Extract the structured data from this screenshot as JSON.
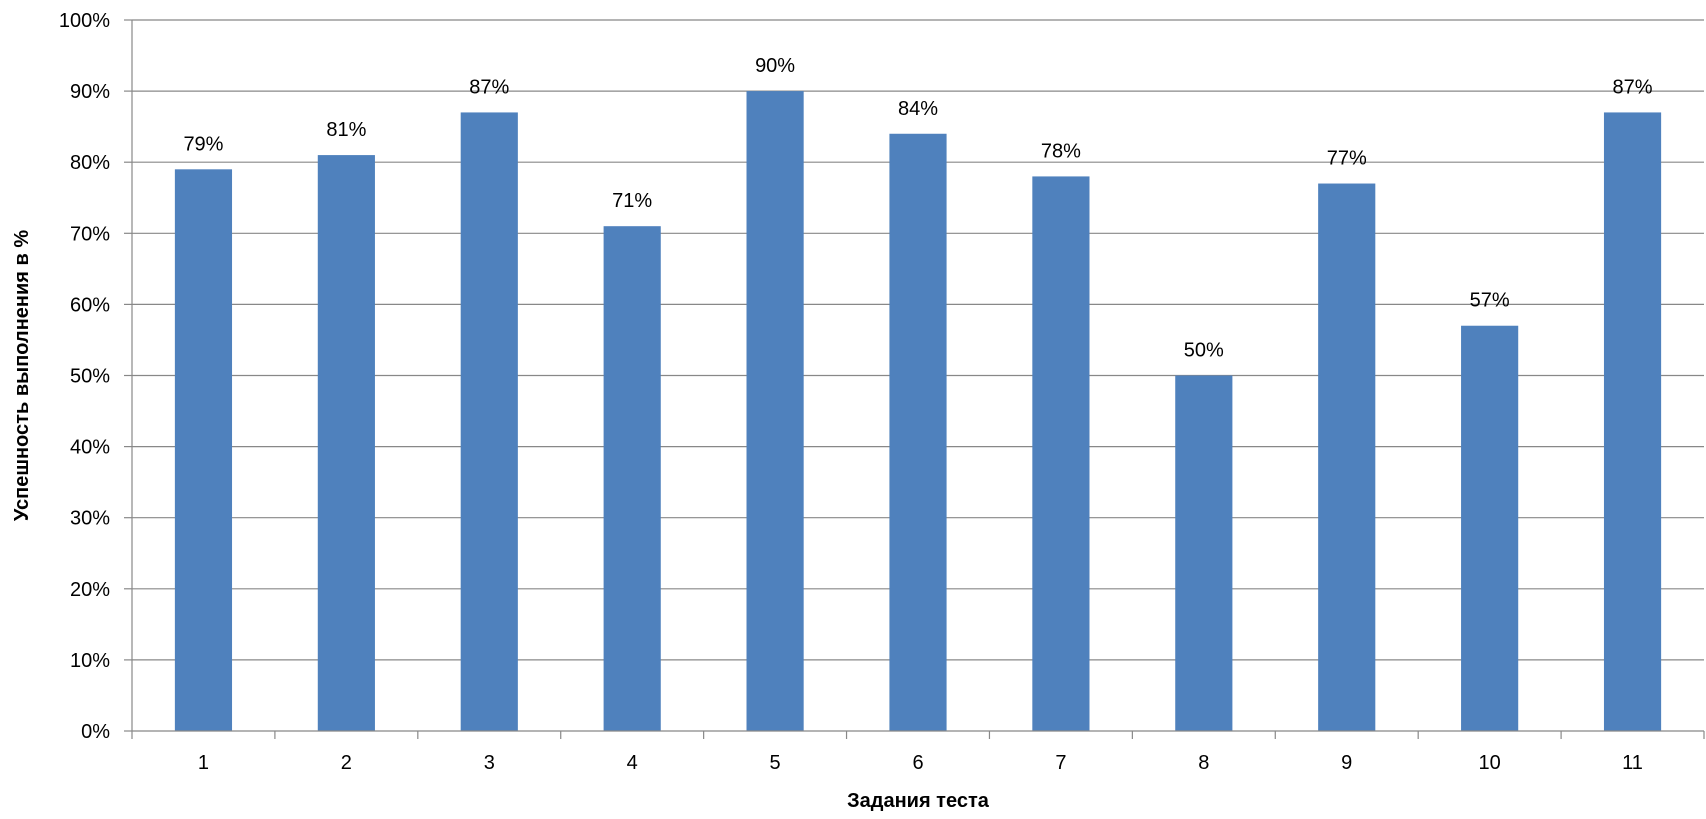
{
  "chart_data": {
    "type": "bar",
    "categories": [
      "1",
      "2",
      "3",
      "4",
      "5",
      "6",
      "7",
      "8",
      "9",
      "10",
      "11"
    ],
    "values": [
      79,
      81,
      87,
      71,
      90,
      84,
      78,
      50,
      77,
      57,
      87
    ],
    "data_labels": [
      "79%",
      "81%",
      "87%",
      "71%",
      "90%",
      "84%",
      "78%",
      "50%",
      "77%",
      "57%",
      "87%"
    ],
    "title": "",
    "xlabel": "Задания теста",
    "ylabel": "Успешность выполнения в %",
    "ylim": [
      0,
      100
    ],
    "yticks": [
      "0%",
      "10%",
      "20%",
      "30%",
      "40%",
      "50%",
      "60%",
      "70%",
      "80%",
      "90%",
      "100%"
    ],
    "grid": true,
    "legend": "none",
    "colors": {
      "bar": "#4F81BD",
      "grid": "#888888",
      "axis": "#888888",
      "text": "#000000"
    }
  }
}
